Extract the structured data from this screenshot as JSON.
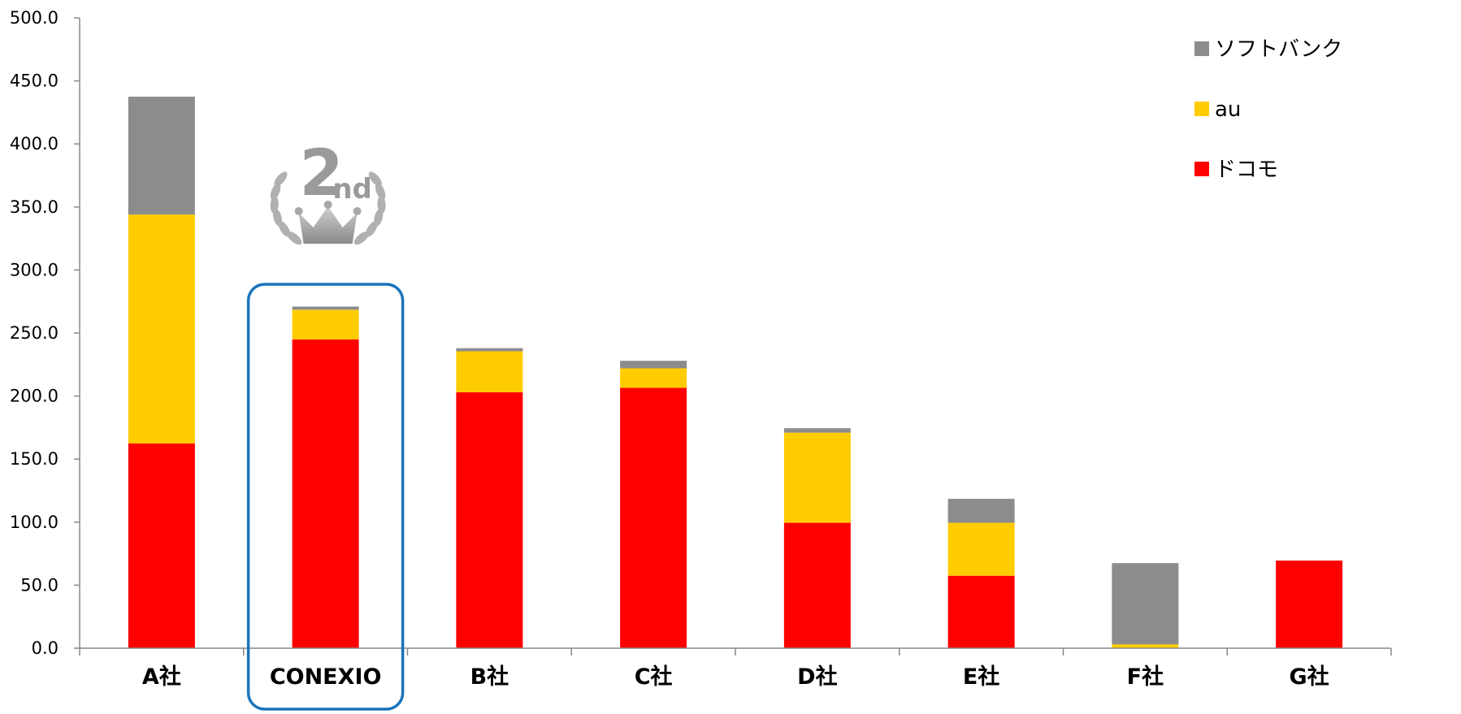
{
  "chart_data": {
    "type": "bar",
    "stacked": true,
    "categories": [
      "A社",
      "CONEXIO",
      "B社",
      "C社",
      "D社",
      "E社",
      "F社",
      "G社"
    ],
    "series": [
      {
        "name": "ドコモ",
        "color": "#ff0000",
        "values": [
          162.5,
          245.0,
          203.0,
          206.5,
          99.5,
          57.5,
          0.0,
          69.5
        ]
      },
      {
        "name": "au",
        "color": "#ffcc00",
        "values": [
          181.5,
          23.5,
          32.5,
          15.5,
          71.5,
          42.0,
          3.0,
          0.0
        ]
      },
      {
        "name": "ソフトバンク",
        "color": "#8c8c8c",
        "values": [
          93.5,
          2.5,
          2.5,
          6.0,
          3.5,
          19.0,
          64.5,
          0.0
        ]
      }
    ],
    "ylim": [
      0,
      500
    ],
    "yticks": [
      "0.0",
      "50.0",
      "100.0",
      "150.0",
      "200.0",
      "250.0",
      "300.0",
      "350.0",
      "400.0",
      "450.0",
      "500.0"
    ],
    "legend_order": [
      "ソフトバンク",
      "au",
      "ドコモ"
    ],
    "legend_position": "top-right",
    "highlight": {
      "category": "CONEXIO",
      "border_color": "#1a74bc"
    },
    "badge": {
      "category": "CONEXIO",
      "number": "2",
      "suffix": "nd",
      "color": "#9a9a9a"
    }
  }
}
